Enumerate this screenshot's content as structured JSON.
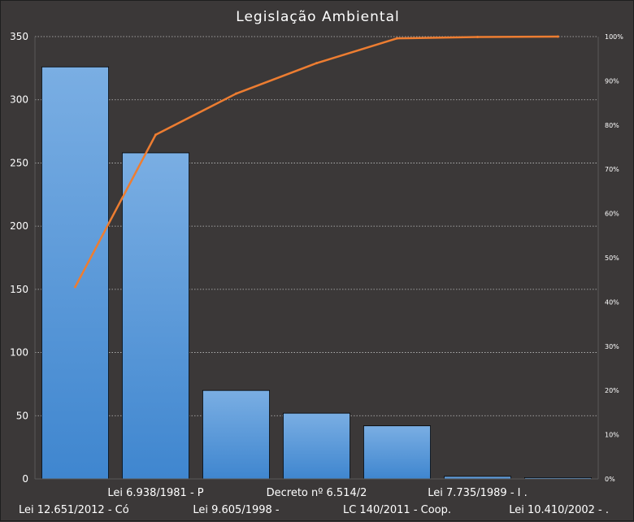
{
  "chart_data": {
    "type": "bar",
    "title": "Legislação Ambiental",
    "categories": [
      "Lei 12.651/2012 - Có",
      "Lei 6.938/1981 - P",
      "Lei 9.605/1998 -",
      "Decreto nº 6.514/2",
      "LC 140/2011 - Coop.",
      "Lei 7.735/1989 - I .",
      "Lei 10.410/2002 - ."
    ],
    "series": [
      {
        "type": "bar",
        "values": [
          326,
          258,
          70,
          52,
          42,
          2,
          1
        ]
      },
      {
        "type": "line",
        "axis": "secondary",
        "values": [
          0.434,
          0.778,
          0.871,
          0.94,
          0.996,
          0.999,
          1.0
        ]
      }
    ],
    "ylim": [
      0,
      350
    ],
    "yticks": [
      "0",
      "50",
      "100",
      "150",
      "200",
      "250",
      "300",
      "350"
    ],
    "y2lim": [
      0,
      1
    ],
    "y2ticks": [
      "0%",
      "10%",
      "20%",
      "30%",
      "40%",
      "50%",
      "60%",
      "70%",
      "80%",
      "90%",
      "100%"
    ],
    "grid": true,
    "legend": "none",
    "colors": {
      "background": "#3b3838",
      "bar_top": "#7aaee3",
      "bar_bottom": "#3f86cf",
      "line": "#ed7d31",
      "gridline": "#bfbfbf",
      "text": "#ffffff"
    }
  }
}
